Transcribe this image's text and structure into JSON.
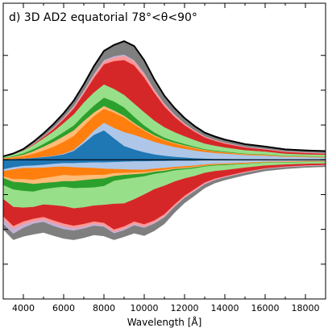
{
  "chart_data": {
    "type": "area",
    "title": "d) 3D AD2 equatorial 78°<θ<90°",
    "xlabel": "Wavelength [Å]",
    "ylabel": "",
    "xlim": [
      3000,
      19000
    ],
    "ylim": [
      -4.0,
      4.5
    ],
    "grid": false,
    "x_ticks": [
      4000,
      6000,
      8000,
      10000,
      12000,
      14000,
      16000,
      18000
    ],
    "x_tick_labels": [
      "4000",
      "6000",
      "8000",
      "10000",
      "12000",
      "14000",
      "16000",
      "18000"
    ],
    "y_ticks": [
      -3,
      -2,
      -1,
      0,
      1,
      2,
      3
    ],
    "y_tick_labels": [],
    "zero_line": true,
    "upper_stack": {
      "x": [
        3000,
        3500,
        4000,
        4500,
        5000,
        5500,
        6000,
        6500,
        7000,
        7500,
        8000,
        8500,
        9000,
        9500,
        10000,
        10500,
        11000,
        11500,
        12000,
        12500,
        13000,
        13500,
        14000,
        15000,
        16000,
        17000,
        18000,
        19000
      ],
      "layers": [
        {
          "color": "#1f77b4",
          "values": [
            0.02,
            0.03,
            0.04,
            0.06,
            0.08,
            0.11,
            0.16,
            0.26,
            0.48,
            0.72,
            0.85,
            0.62,
            0.4,
            0.3,
            0.22,
            0.16,
            0.12,
            0.09,
            0.07,
            0.05,
            0.04,
            0.03,
            0.03,
            0.02,
            0.02,
            0.01,
            0.01,
            0.01
          ]
        },
        {
          "color": "#aec7e8",
          "values": [
            0.0,
            0.0,
            0.0,
            0.0,
            0.01,
            0.01,
            0.02,
            0.03,
            0.06,
            0.12,
            0.22,
            0.3,
            0.4,
            0.42,
            0.4,
            0.36,
            0.32,
            0.28,
            0.25,
            0.22,
            0.19,
            0.17,
            0.15,
            0.12,
            0.1,
            0.08,
            0.07,
            0.06
          ]
        },
        {
          "color": "#ff7f0e",
          "values": [
            0.02,
            0.04,
            0.07,
            0.12,
            0.18,
            0.26,
            0.34,
            0.4,
            0.44,
            0.42,
            0.4,
            0.44,
            0.42,
            0.3,
            0.22,
            0.16,
            0.12,
            0.1,
            0.08,
            0.06,
            0.05,
            0.04,
            0.03,
            0.02,
            0.02,
            0.01,
            0.01,
            0.01
          ]
        },
        {
          "color": "#ffbb78",
          "values": [
            0.01,
            0.02,
            0.04,
            0.07,
            0.11,
            0.14,
            0.16,
            0.16,
            0.14,
            0.1,
            0.08,
            0.06,
            0.05,
            0.04,
            0.03,
            0.03,
            0.02,
            0.02,
            0.02,
            0.02,
            0.01,
            0.01,
            0.01,
            0.01,
            0.01,
            0.01,
            0.01,
            0.01
          ]
        },
        {
          "color": "#2ca02c",
          "values": [
            0.01,
            0.02,
            0.04,
            0.06,
            0.08,
            0.1,
            0.12,
            0.14,
            0.17,
            0.2,
            0.24,
            0.26,
            0.24,
            0.18,
            0.12,
            0.08,
            0.06,
            0.05,
            0.04,
            0.03,
            0.02,
            0.02,
            0.02,
            0.01,
            0.01,
            0.01,
            0.01,
            0.01
          ]
        },
        {
          "color": "#98df8a",
          "values": [
            0.03,
            0.05,
            0.08,
            0.12,
            0.16,
            0.2,
            0.26,
            0.32,
            0.36,
            0.38,
            0.38,
            0.36,
            0.36,
            0.38,
            0.38,
            0.34,
            0.3,
            0.26,
            0.22,
            0.19,
            0.16,
            0.14,
            0.12,
            0.1,
            0.08,
            0.06,
            0.05,
            0.05
          ]
        },
        {
          "color": "#d62728",
          "values": [
            0.0,
            0.0,
            0.01,
            0.02,
            0.04,
            0.07,
            0.11,
            0.17,
            0.26,
            0.42,
            0.58,
            0.8,
            1.0,
            1.1,
            1.0,
            0.8,
            0.6,
            0.44,
            0.32,
            0.24,
            0.18,
            0.14,
            0.11,
            0.08,
            0.06,
            0.05,
            0.04,
            0.03
          ]
        },
        {
          "color": "#ff9896",
          "values": [
            0.0,
            0.0,
            0.0,
            0.01,
            0.01,
            0.02,
            0.03,
            0.04,
            0.05,
            0.07,
            0.08,
            0.1,
            0.12,
            0.12,
            0.1,
            0.08,
            0.06,
            0.05,
            0.04,
            0.03,
            0.02,
            0.02,
            0.02,
            0.01,
            0.01,
            0.01,
            0.01,
            0.01
          ]
        },
        {
          "color": "#c5b0d5",
          "values": [
            0.0,
            0.0,
            0.0,
            0.01,
            0.01,
            0.02,
            0.02,
            0.03,
            0.03,
            0.04,
            0.04,
            0.04,
            0.04,
            0.03,
            0.03,
            0.02,
            0.02,
            0.02,
            0.01,
            0.01,
            0.01,
            0.01,
            0.01,
            0.01,
            0.01,
            0.01,
            0.01,
            0.01
          ]
        },
        {
          "color": "#7f7f7f",
          "values": [
            0.01,
            0.02,
            0.03,
            0.05,
            0.08,
            0.1,
            0.12,
            0.15,
            0.18,
            0.22,
            0.26,
            0.32,
            0.38,
            0.4,
            0.36,
            0.28,
            0.22,
            0.18,
            0.15,
            0.12,
            0.1,
            0.09,
            0.08,
            0.07,
            0.06,
            0.05,
            0.05,
            0.05
          ]
        }
      ],
      "outline_color": "#000000"
    },
    "lower_stack": {
      "x": [
        3000,
        3500,
        4000,
        4500,
        5000,
        5500,
        6000,
        6500,
        7000,
        7500,
        8000,
        8500,
        9000,
        9500,
        10000,
        10500,
        11000,
        11500,
        12000,
        12500,
        13000,
        13500,
        14000,
        15000,
        16000,
        17000,
        18000,
        19000
      ],
      "layers": [
        {
          "color": "#1f77b4",
          "values": [
            0.28,
            0.22,
            0.18,
            0.17,
            0.15,
            0.12,
            0.1,
            0.1,
            0.09,
            0.08,
            0.08,
            0.07,
            0.06,
            0.05,
            0.05,
            0.04,
            0.04,
            0.03,
            0.03,
            0.03,
            0.02,
            0.02,
            0.02,
            0.02,
            0.01,
            0.01,
            0.01,
            0.01
          ]
        },
        {
          "color": "#aec7e8",
          "values": [
            0.05,
            0.06,
            0.06,
            0.07,
            0.08,
            0.09,
            0.1,
            0.12,
            0.14,
            0.16,
            0.18,
            0.2,
            0.22,
            0.24,
            0.24,
            0.22,
            0.2,
            0.18,
            0.16,
            0.14,
            0.12,
            0.1,
            0.09,
            0.07,
            0.05,
            0.04,
            0.03,
            0.03
          ]
        },
        {
          "color": "#ff7f0e",
          "values": [
            0.15,
            0.28,
            0.32,
            0.34,
            0.3,
            0.28,
            0.24,
            0.24,
            0.22,
            0.2,
            0.18,
            0.12,
            0.1,
            0.08,
            0.07,
            0.06,
            0.05,
            0.04,
            0.04,
            0.03,
            0.03,
            0.02,
            0.02,
            0.02,
            0.01,
            0.01,
            0.01,
            0.01
          ]
        },
        {
          "color": "#ffbb78",
          "values": [
            0.05,
            0.08,
            0.1,
            0.12,
            0.14,
            0.16,
            0.18,
            0.16,
            0.14,
            0.12,
            0.1,
            0.08,
            0.06,
            0.05,
            0.04,
            0.03,
            0.03,
            0.02,
            0.02,
            0.02,
            0.01,
            0.01,
            0.01,
            0.01,
            0.01,
            0.01,
            0.01,
            0.01
          ]
        },
        {
          "color": "#2ca02c",
          "values": [
            0.2,
            0.22,
            0.24,
            0.22,
            0.18,
            0.16,
            0.16,
            0.2,
            0.22,
            0.24,
            0.22,
            0.14,
            0.12,
            0.1,
            0.08,
            0.06,
            0.05,
            0.04,
            0.03,
            0.03,
            0.02,
            0.02,
            0.02,
            0.01,
            0.01,
            0.01,
            0.01,
            0.01
          ]
        },
        {
          "color": "#98df8a",
          "values": [
            0.4,
            0.5,
            0.48,
            0.44,
            0.44,
            0.5,
            0.56,
            0.58,
            0.56,
            0.52,
            0.54,
            0.66,
            0.7,
            0.62,
            0.52,
            0.44,
            0.38,
            0.32,
            0.26,
            0.22,
            0.18,
            0.16,
            0.14,
            0.1,
            0.08,
            0.06,
            0.05,
            0.04
          ]
        },
        {
          "color": "#d62728",
          "values": [
            0.5,
            0.55,
            0.4,
            0.34,
            0.36,
            0.44,
            0.5,
            0.5,
            0.48,
            0.46,
            0.52,
            0.74,
            0.66,
            0.64,
            0.86,
            0.9,
            0.82,
            0.66,
            0.5,
            0.38,
            0.28,
            0.22,
            0.18,
            0.12,
            0.08,
            0.06,
            0.05,
            0.04
          ]
        },
        {
          "color": "#ff9896",
          "values": [
            0.08,
            0.08,
            0.08,
            0.08,
            0.08,
            0.08,
            0.08,
            0.08,
            0.08,
            0.07,
            0.07,
            0.07,
            0.07,
            0.07,
            0.07,
            0.06,
            0.06,
            0.05,
            0.04,
            0.04,
            0.03,
            0.03,
            0.02,
            0.02,
            0.01,
            0.01,
            0.01,
            0.01
          ]
        },
        {
          "color": "#c5b0d5",
          "values": [
            0.14,
            0.14,
            0.1,
            0.06,
            0.06,
            0.08,
            0.08,
            0.06,
            0.05,
            0.05,
            0.04,
            0.04,
            0.04,
            0.04,
            0.03,
            0.03,
            0.03,
            0.02,
            0.02,
            0.02,
            0.02,
            0.01,
            0.01,
            0.01,
            0.01,
            0.01,
            0.01,
            0.01
          ]
        },
        {
          "color": "#7f7f7f",
          "values": [
            0.15,
            0.17,
            0.24,
            0.3,
            0.3,
            0.27,
            0.26,
            0.26,
            0.26,
            0.26,
            0.26,
            0.18,
            0.18,
            0.22,
            0.22,
            0.2,
            0.18,
            0.16,
            0.14,
            0.12,
            0.1,
            0.08,
            0.07,
            0.06,
            0.05,
            0.04,
            0.03,
            0.03
          ]
        }
      ]
    }
  }
}
